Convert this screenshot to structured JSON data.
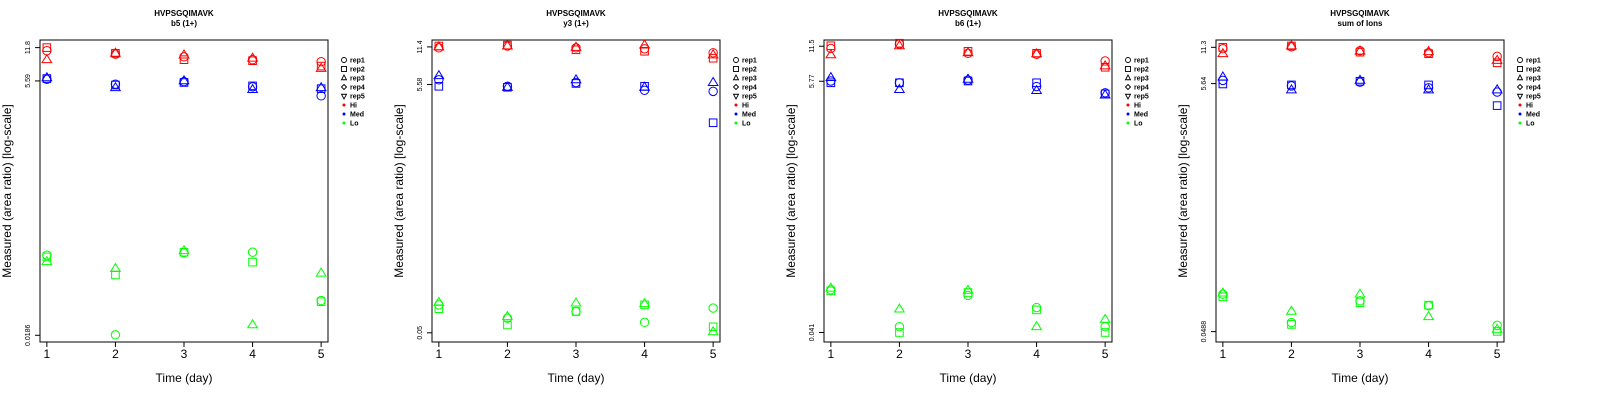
{
  "colors": {
    "Hi": "#ff0000",
    "Med": "#0000ff",
    "Lo": "#00ff00",
    "axis": "#000000"
  },
  "legend": {
    "entries": [
      {
        "label": "rep1",
        "marker": "circle"
      },
      {
        "label": "rep2",
        "marker": "square"
      },
      {
        "label": "rep3",
        "marker": "triangle-up"
      },
      {
        "label": "rep4",
        "marker": "diamond"
      },
      {
        "label": "rep5",
        "marker": "triangle-down"
      },
      {
        "label": "Hi",
        "marker": "dot",
        "color": "#ff0000"
      },
      {
        "label": "Med",
        "marker": "dot",
        "color": "#0000ff"
      },
      {
        "label": "Lo",
        "marker": "dot",
        "color": "#00ff00"
      }
    ]
  },
  "chart_data": [
    {
      "type": "scatter",
      "title": "HVPSGQIMAVK",
      "subtitle": "b5 (1+)",
      "xlabel": "Time (day)",
      "ylabel": "Measured (area ratio) [log-scale]",
      "log_y": true,
      "ylim": [
        0.016,
        14
      ],
      "y_ticks": [
        "11.8",
        "5.59",
        "0.0186"
      ],
      "x": [
        1,
        2,
        3,
        4,
        5
      ],
      "series": [
        {
          "level": "Hi",
          "rep": "rep1",
          "values": [
            11.0,
            10.2,
            9.6,
            9.0,
            8.6
          ]
        },
        {
          "level": "Hi",
          "rep": "rep2",
          "values": [
            11.8,
            10.4,
            9.0,
            8.8,
            7.8
          ]
        },
        {
          "level": "Hi",
          "rep": "rep3",
          "values": [
            9.0,
            10.4,
            10.0,
            9.3,
            7.4
          ]
        },
        {
          "level": "Med",
          "rep": "rep1",
          "values": [
            5.8,
            5.2,
            5.5,
            4.9,
            4.0
          ]
        },
        {
          "level": "Med",
          "rep": "rep2",
          "values": [
            5.9,
            5.1,
            5.4,
            5.0,
            4.7
          ]
        },
        {
          "level": "Med",
          "rep": "rep3",
          "values": [
            6.0,
            4.8,
            5.6,
            4.6,
            4.8
          ]
        },
        {
          "level": "Lo",
          "rep": "rep1",
          "values": [
            0.112,
            0.0188,
            0.118,
            0.12,
            0.0405
          ]
        },
        {
          "level": "Lo",
          "rep": "rep2",
          "values": [
            0.108,
            0.072,
            0.12,
            0.096,
            0.0395
          ]
        },
        {
          "level": "Lo",
          "rep": "rep3",
          "values": [
            0.097,
            0.083,
            0.124,
            0.0235,
            0.075
          ]
        }
      ]
    },
    {
      "type": "scatter",
      "title": "HVPSGQIMAVK",
      "subtitle": "y3 (1+)",
      "xlabel": "Time (day)",
      "ylabel": "Measured (area ratio) [log-scale]",
      "log_y": true,
      "ylim": [
        0.042,
        13
      ],
      "y_ticks": [
        "11.4",
        "5.58",
        "0.05"
      ],
      "x": [
        1,
        2,
        3,
        4,
        5
      ],
      "series": [
        {
          "level": "Hi",
          "rep": "rep1",
          "values": [
            11.2,
            11.6,
            11.2,
            11.0,
            10.2
          ]
        },
        {
          "level": "Hi",
          "rep": "rep2",
          "values": [
            11.6,
            11.8,
            10.8,
            10.5,
            9.2
          ]
        },
        {
          "level": "Hi",
          "rep": "rep3",
          "values": [
            11.4,
            11.6,
            11.3,
            11.8,
            9.8
          ]
        },
        {
          "level": "Med",
          "rep": "rep1",
          "values": [
            6.1,
            5.4,
            5.8,
            5.0,
            4.9
          ]
        },
        {
          "level": "Med",
          "rep": "rep2",
          "values": [
            5.4,
            5.3,
            5.7,
            5.4,
            2.7
          ]
        },
        {
          "level": "Med",
          "rep": "rep3",
          "values": [
            6.6,
            5.3,
            6.1,
            5.3,
            5.8
          ]
        },
        {
          "level": "Lo",
          "rep": "rep1",
          "values": [
            0.085,
            0.066,
            0.075,
            0.061,
            0.08
          ]
        },
        {
          "level": "Lo",
          "rep": "rep2",
          "values": [
            0.079,
            0.058,
            0.075,
            0.085,
            0.056
          ]
        },
        {
          "level": "Lo",
          "rep": "rep3",
          "values": [
            0.089,
            0.068,
            0.088,
            0.087,
            0.051
          ]
        }
      ]
    },
    {
      "type": "scatter",
      "title": "HVPSGQIMAVK",
      "subtitle": "b6 (1+)",
      "xlabel": "Time (day)",
      "ylabel": "Measured (area ratio) [log-scale]",
      "log_y": true,
      "ylim": [
        0.034,
        13
      ],
      "y_ticks": [
        "11.5",
        "5.77",
        "0.041"
      ],
      "x": [
        1,
        2,
        3,
        4,
        5
      ],
      "series": [
        {
          "level": "Hi",
          "rep": "rep1",
          "values": [
            11.0,
            12.0,
            10.0,
            9.8,
            8.6
          ]
        },
        {
          "level": "Hi",
          "rep": "rep2",
          "values": [
            11.6,
            12.2,
            10.4,
            10.0,
            7.6
          ]
        },
        {
          "level": "Hi",
          "rep": "rep3",
          "values": [
            9.7,
            11.6,
            10.1,
            9.9,
            7.8
          ]
        },
        {
          "level": "Med",
          "rep": "rep1",
          "values": [
            5.8,
            5.6,
            5.9,
            5.2,
            4.6
          ]
        },
        {
          "level": "Med",
          "rep": "rep2",
          "values": [
            5.6,
            5.6,
            5.8,
            5.6,
            4.5
          ]
        },
        {
          "level": "Med",
          "rep": "rep3",
          "values": [
            6.2,
            4.9,
            6.0,
            4.8,
            4.4
          ]
        },
        {
          "level": "Lo",
          "rep": "rep1",
          "values": [
            0.095,
            0.046,
            0.085,
            0.067,
            0.046
          ]
        },
        {
          "level": "Lo",
          "rep": "rep2",
          "values": [
            0.093,
            0.041,
            0.09,
            0.064,
            0.041
          ]
        },
        {
          "level": "Lo",
          "rep": "rep3",
          "values": [
            0.098,
            0.065,
            0.094,
            0.046,
            0.053
          ]
        }
      ]
    },
    {
      "type": "scatter",
      "title": "HVPSGQIMAVK",
      "subtitle": "sum of Ions",
      "xlabel": "Time (day)",
      "ylabel": "Measured (area ratio) [log-scale]",
      "log_y": true,
      "ylim": [
        0.04,
        13
      ],
      "y_ticks": [
        "11.3",
        "5.64",
        "0.0488"
      ],
      "x": [
        1,
        2,
        3,
        4,
        5
      ],
      "series": [
        {
          "level": "Hi",
          "rep": "rep1",
          "values": [
            11.0,
            11.4,
            10.6,
            10.2,
            9.5
          ]
        },
        {
          "level": "Hi",
          "rep": "rep2",
          "values": [
            11.3,
            11.6,
            10.3,
            10.0,
            8.4
          ]
        },
        {
          "level": "Hi",
          "rep": "rep3",
          "values": [
            10.0,
            11.6,
            10.5,
            10.4,
            8.8
          ]
        },
        {
          "level": "Med",
          "rep": "rep1",
          "values": [
            6.0,
            5.4,
            5.8,
            5.2,
            4.8
          ]
        },
        {
          "level": "Med",
          "rep": "rep2",
          "values": [
            5.6,
            5.5,
            5.9,
            5.5,
            3.7
          ]
        },
        {
          "level": "Med",
          "rep": "rep3",
          "values": [
            6.4,
            5.0,
            6.0,
            5.0,
            5.0
          ]
        },
        {
          "level": "Lo",
          "rep": "rep1",
          "values": [
            0.1,
            0.058,
            0.088,
            0.08,
            0.055
          ]
        },
        {
          "level": "Lo",
          "rep": "rep2",
          "values": [
            0.095,
            0.056,
            0.085,
            0.081,
            0.049
          ]
        },
        {
          "level": "Lo",
          "rep": "rep3",
          "values": [
            0.102,
            0.072,
            0.1,
            0.065,
            0.051
          ]
        }
      ]
    }
  ]
}
